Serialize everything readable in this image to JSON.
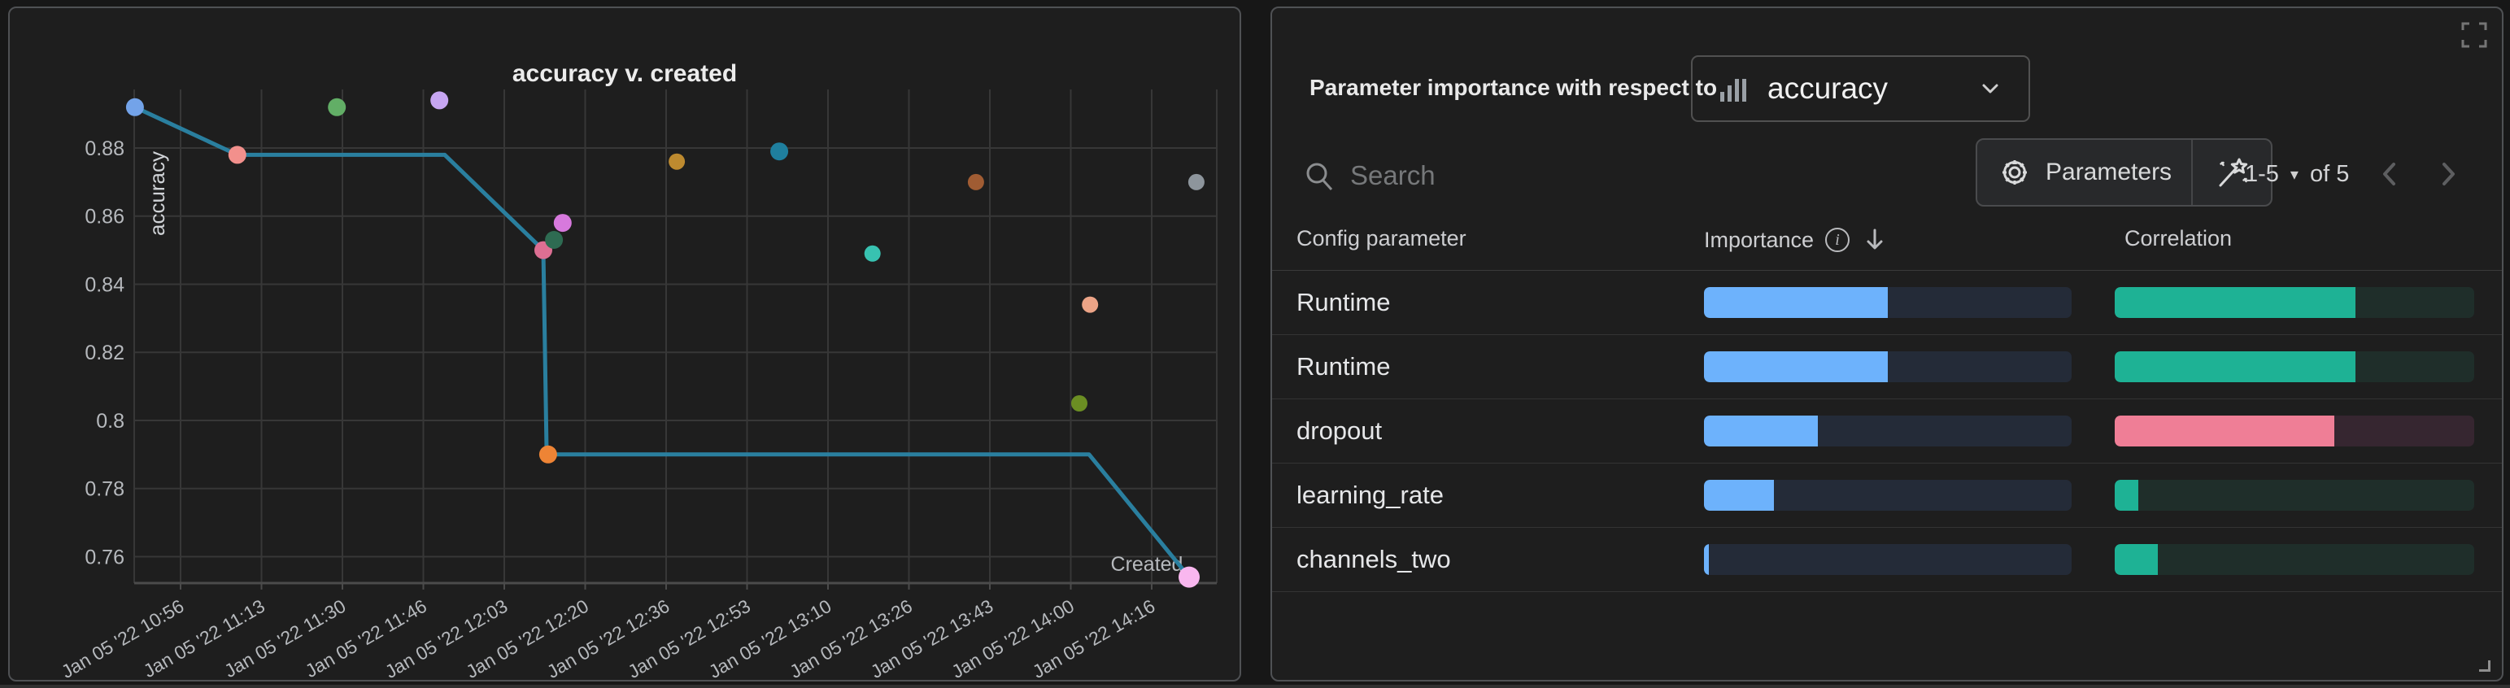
{
  "chart_data": {
    "type": "scatter",
    "title": "accuracy v. created",
    "xlabel": "Created",
    "ylabel": "accuracy",
    "x_tick_labels": [
      "Jan 05 '22 10:56",
      "Jan 05 '22 11:13",
      "Jan 05 '22 11:30",
      "Jan 05 '22 11:46",
      "Jan 05 '22 12:03",
      "Jan 05 '22 12:20",
      "Jan 05 '22 12:36",
      "Jan 05 '22 12:53",
      "Jan 05 '22 13:10",
      "Jan 05 '22 13:26",
      "Jan 05 '22 13:43",
      "Jan 05 '22 14:00",
      "Jan 05 '22 14:16"
    ],
    "x_tick_interval_minutes": 16.6667,
    "y_ticks": [
      0.88,
      0.86,
      0.84,
      0.82,
      0.8,
      0.78,
      0.76
    ],
    "y_tick_labels": [
      "0.88",
      "0.86",
      "0.84",
      "0.82",
      "0.8",
      "0.78",
      "0.76"
    ],
    "ylim": [
      0.748,
      0.9
    ],
    "grid": true,
    "points": [
      {
        "t": -9.4,
        "value": 0.892,
        "color": "#73a3e9",
        "r": 11
      },
      {
        "t": 11.7,
        "value": 0.878,
        "color": "#f2908c",
        "r": 11
      },
      {
        "t": 32.2,
        "value": 0.892,
        "color": "#62ae66",
        "r": 11
      },
      {
        "t": 53.3,
        "value": 0.894,
        "color": "#c7a6f2",
        "r": 11
      },
      {
        "t": 74.7,
        "value": 0.85,
        "color": "#dd6f93",
        "r": 11
      },
      {
        "t": 76.9,
        "value": 0.853,
        "color": "#2e6b52",
        "r": 11
      },
      {
        "t": 78.7,
        "value": 0.858,
        "color": "#d779dd",
        "r": 11
      },
      {
        "t": 75.7,
        "value": 0.79,
        "color": "#ee8435",
        "r": 11
      },
      {
        "t": 102.2,
        "value": 0.876,
        "color": "#bd8a2f",
        "r": 10
      },
      {
        "t": 123.3,
        "value": 0.879,
        "color": "#1f7f9e",
        "r": 11
      },
      {
        "t": 142.5,
        "value": 0.849,
        "color": "#38c2b1",
        "r": 10
      },
      {
        "t": 163.8,
        "value": 0.87,
        "color": "#a05c33",
        "r": 10
      },
      {
        "t": 187.3,
        "value": 0.834,
        "color": "#eca487",
        "r": 10
      },
      {
        "t": 185.1,
        "value": 0.805,
        "color": "#6b8e23",
        "r": 10
      },
      {
        "t": 209.2,
        "value": 0.87,
        "color": "#8d959c",
        "r": 10
      },
      {
        "t": 207.7,
        "value": 0.754,
        "color": "#f9b7ef",
        "r": 13
      }
    ],
    "line": {
      "color": "#2a7f9f",
      "width": 5,
      "points": [
        {
          "t": -9.4,
          "value": 0.892
        },
        {
          "t": 11.7,
          "value": 0.878
        },
        {
          "t": 54.4,
          "value": 0.878
        },
        {
          "t": 74.7,
          "value": 0.85
        },
        {
          "t": 75.4,
          "value": 0.79
        },
        {
          "t": 187.1,
          "value": 0.79
        },
        {
          "t": 207.7,
          "value": 0.754
        }
      ]
    },
    "colors": {
      "grid": "#373737",
      "axis": "#4b4b4b",
      "tick_text": "#b6b9bd",
      "title_text": "#ececec"
    }
  },
  "right_panel": {
    "header": {
      "label": "Parameter importance with respect to",
      "metric_select_value": "accuracy"
    },
    "toolbar": {
      "search_placeholder": "Search",
      "parameters_button_label": "Parameters",
      "pagination_range": "1-5",
      "pagination_of": "of 5"
    },
    "table": {
      "col_parameter": "Config parameter",
      "col_importance": "Importance",
      "col_correlation": "Correlation",
      "importance_fill_color": "#6db2fc",
      "importance_track_color": "#242b38",
      "rows": [
        {
          "parameter": "Runtime",
          "importance": 0.5,
          "correlation": 0.67,
          "correlation_color": "#1eb295",
          "correlation_track": "#1f2e2a"
        },
        {
          "parameter": "Runtime",
          "importance": 0.5,
          "correlation": 0.67,
          "correlation_color": "#1eb295",
          "correlation_track": "#1f2e2a"
        },
        {
          "parameter": "dropout",
          "importance": 0.31,
          "correlation": 0.61,
          "correlation_color": "#ef7e96",
          "correlation_track": "#362630"
        },
        {
          "parameter": "learning_rate",
          "importance": 0.19,
          "correlation": 0.066,
          "correlation_color": "#1eb295",
          "correlation_track": "#1f2e2a"
        },
        {
          "parameter": "channels_two",
          "importance": 0.013,
          "correlation": 0.12,
          "correlation_color": "#1eb295",
          "correlation_track": "#1f2e2a"
        }
      ]
    }
  }
}
